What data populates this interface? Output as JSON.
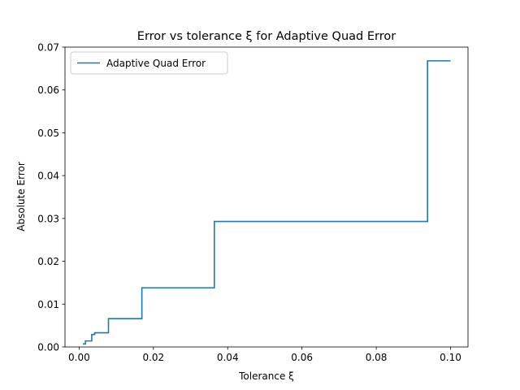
{
  "chart_data": {
    "type": "line",
    "title": "Error vs tolerance ξ for Adaptive Quad Error",
    "xlabel": "Tolerance ξ",
    "ylabel": "Absolute Error",
    "xlim": [
      -0.0038,
      0.1047
    ],
    "ylim": [
      0.0,
      0.07
    ],
    "xticks": [
      0.0,
      0.02,
      0.04,
      0.06,
      0.08,
      0.1
    ],
    "xtick_labels": [
      "0.00",
      "0.02",
      "0.04",
      "0.06",
      "0.08",
      "0.10"
    ],
    "yticks": [
      0.0,
      0.01,
      0.02,
      0.03,
      0.04,
      0.05,
      0.06,
      0.07
    ],
    "ytick_labels": [
      "0.00",
      "0.01",
      "0.02",
      "0.03",
      "0.04",
      "0.05",
      "0.06",
      "0.07"
    ],
    "grid": false,
    "legend_position": "top-left",
    "series": [
      {
        "name": "Adaptive Quad Error",
        "color": "#1f77b4",
        "step": true,
        "x": [
          0.001,
          0.0017,
          0.0034,
          0.0042,
          0.0079,
          0.0169,
          0.0364,
          0.0938,
          0.1
        ],
        "y": [
          0.0007,
          0.0014,
          0.0029,
          0.0033,
          0.0066,
          0.0138,
          0.0293,
          0.0668,
          0.0668
        ]
      }
    ]
  }
}
